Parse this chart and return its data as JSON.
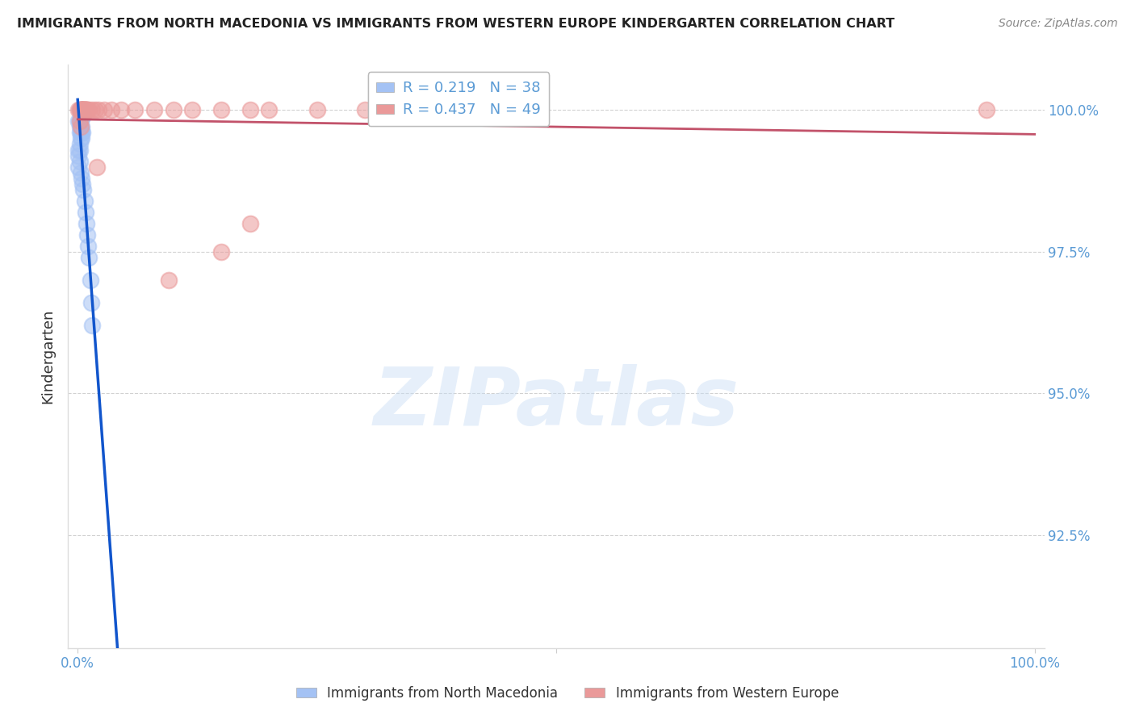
{
  "title": "IMMIGRANTS FROM NORTH MACEDONIA VS IMMIGRANTS FROM WESTERN EUROPE KINDERGARTEN CORRELATION CHART",
  "source": "Source: ZipAtlas.com",
  "ylabel": "Kindergarten",
  "blue_R": 0.219,
  "blue_N": 38,
  "pink_R": 0.437,
  "pink_N": 49,
  "blue_color": "#a4c2f4",
  "pink_color": "#ea9999",
  "blue_line_color": "#1155cc",
  "pink_line_color": "#c2526a",
  "legend_blue_label": "Immigrants from North Macedonia",
  "legend_pink_label": "Immigrants from Western Europe",
  "blue_x": [
    0.002,
    0.003,
    0.004,
    0.003,
    0.005,
    0.004,
    0.006,
    0.002,
    0.003,
    0.001,
    0.002,
    0.003,
    0.004,
    0.002,
    0.003,
    0.004,
    0.005,
    0.003,
    0.004,
    0.002,
    0.001,
    0.002,
    0.001,
    0.002,
    0.001,
    0.003,
    0.004,
    0.005,
    0.006,
    0.007,
    0.008,
    0.009,
    0.01,
    0.011,
    0.012,
    0.013,
    0.014,
    0.015
  ],
  "blue_y": [
    1.0,
    1.0,
    1.0,
    0.999,
    0.999,
    0.999,
    0.999,
    0.998,
    0.998,
    0.998,
    0.997,
    0.997,
    0.997,
    0.996,
    0.996,
    0.996,
    0.996,
    0.995,
    0.995,
    0.994,
    0.993,
    0.993,
    0.992,
    0.991,
    0.99,
    0.989,
    0.988,
    0.987,
    0.986,
    0.984,
    0.982,
    0.98,
    0.978,
    0.976,
    0.974,
    0.97,
    0.966,
    0.962
  ],
  "pink_x": [
    0.001,
    0.002,
    0.003,
    0.004,
    0.005,
    0.003,
    0.004,
    0.005,
    0.006,
    0.004,
    0.005,
    0.006,
    0.007,
    0.008,
    0.005,
    0.006,
    0.007,
    0.008,
    0.009,
    0.01,
    0.006,
    0.007,
    0.008,
    0.01,
    0.012,
    0.015,
    0.018,
    0.022,
    0.028,
    0.035,
    0.045,
    0.06,
    0.08,
    0.1,
    0.12,
    0.15,
    0.18,
    0.2,
    0.25,
    0.3,
    0.35,
    0.4,
    0.02,
    0.18,
    0.15,
    0.095,
    0.95,
    0.002,
    0.003
  ],
  "pink_y": [
    1.0,
    1.0,
    1.0,
    1.0,
    1.0,
    1.0,
    1.0,
    1.0,
    1.0,
    1.0,
    1.0,
    1.0,
    1.0,
    1.0,
    1.0,
    1.0,
    1.0,
    1.0,
    1.0,
    1.0,
    1.0,
    1.0,
    1.0,
    1.0,
    1.0,
    1.0,
    1.0,
    1.0,
    1.0,
    1.0,
    1.0,
    1.0,
    1.0,
    1.0,
    1.0,
    1.0,
    1.0,
    1.0,
    1.0,
    1.0,
    1.0,
    1.0,
    0.99,
    0.98,
    0.975,
    0.97,
    1.0,
    0.998,
    0.997
  ],
  "yticks": [
    0.925,
    0.95,
    0.975,
    1.0
  ],
  "ytick_labels": [
    "92.5%",
    "95.0%",
    "97.5%",
    "100.0%"
  ],
  "ylim": [
    0.905,
    1.008
  ],
  "xlim": [
    -0.01,
    1.01
  ],
  "xtick_vals": [
    0.0,
    0.5,
    1.0
  ],
  "xtick_labels": [
    "0.0%",
    "",
    "100.0%"
  ],
  "watermark_text": "ZIPatlas",
  "bg_color": "#ffffff",
  "grid_color": "#cccccc",
  "tick_color": "#5b9bd5",
  "title_color": "#222222",
  "source_color": "#888888",
  "ylabel_color": "#333333"
}
